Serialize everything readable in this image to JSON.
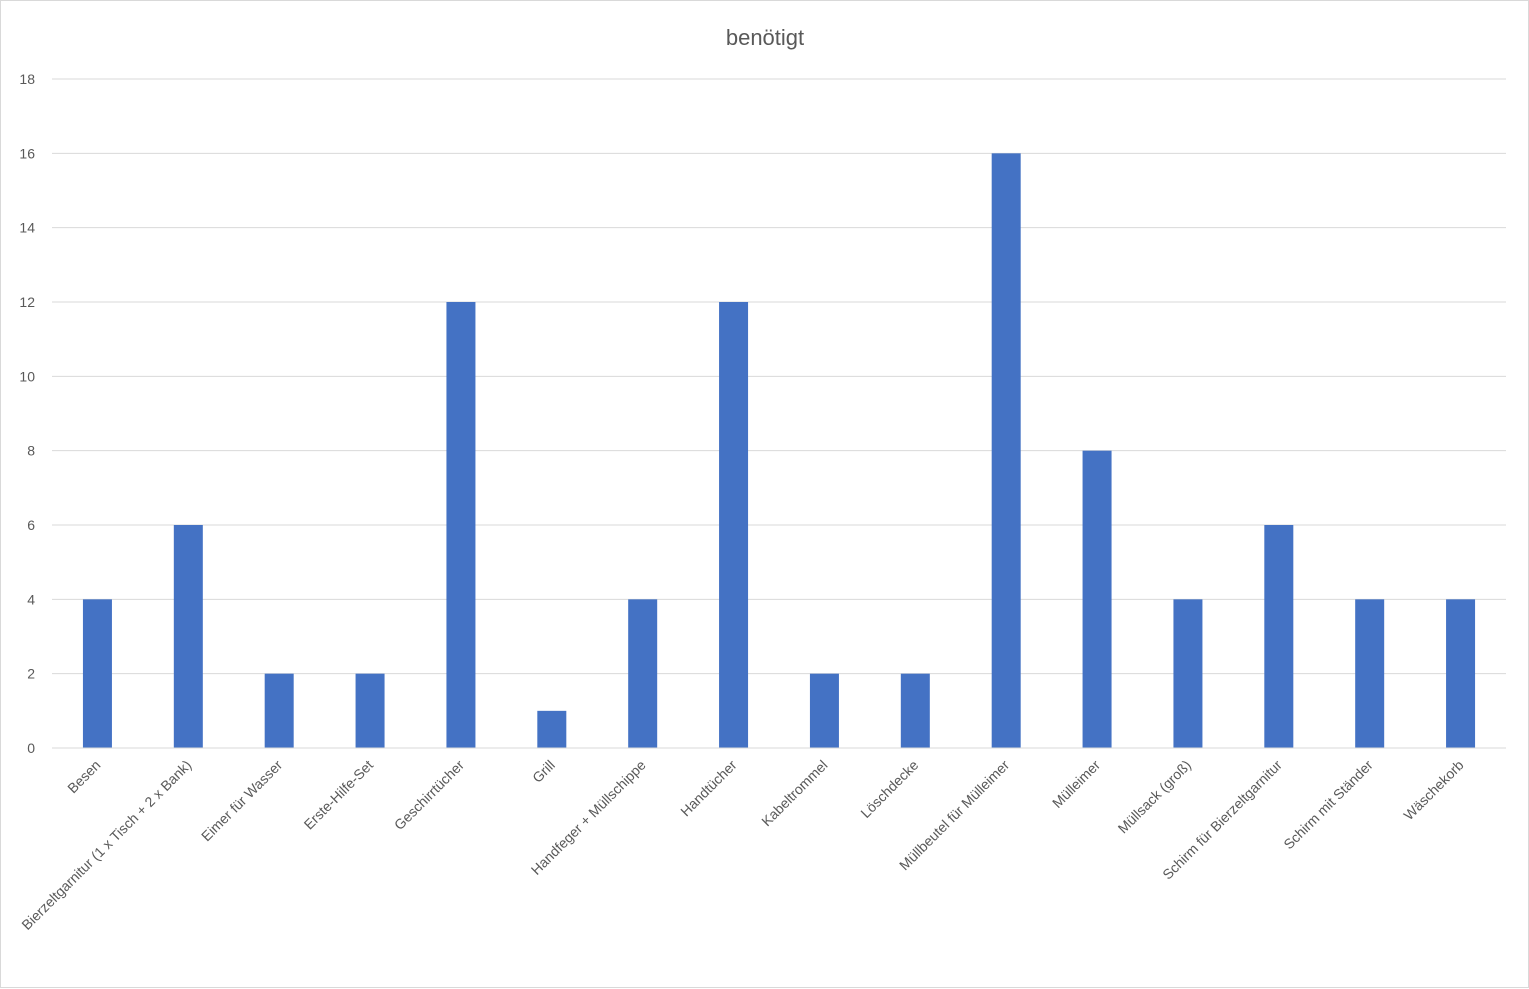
{
  "chart_data": {
    "type": "bar",
    "title": "benötigt",
    "xlabel": "",
    "ylabel": "",
    "ylim": [
      0,
      18
    ],
    "yticks": [
      0,
      2,
      4,
      6,
      8,
      10,
      12,
      14,
      16,
      18
    ],
    "grid": true,
    "legend": "none",
    "bar_color": "#4472c4",
    "grid_color": "#d9d9d9",
    "categories": [
      "Besen",
      "Bierzeltgarnitur (1 x Tisch + 2 x Bank)",
      "Eimer für Wasser",
      "Erste-Hilfe-Set",
      "Geschirrtücher",
      "Grill",
      "Handfeger + Müllschippe",
      "Handtücher",
      "Kabeltrommel",
      "Löschdecke",
      "Müllbeutel für Mülleimer",
      "Mülleimer",
      "Müllsack (groß)",
      "Schirm für Bierzeltgarnitur",
      "Schirm mit Ständer",
      "Wäschekorb"
    ],
    "values": [
      4,
      6,
      2,
      2,
      12,
      1,
      4,
      12,
      2,
      2,
      16,
      8,
      4,
      6,
      4,
      4
    ]
  }
}
